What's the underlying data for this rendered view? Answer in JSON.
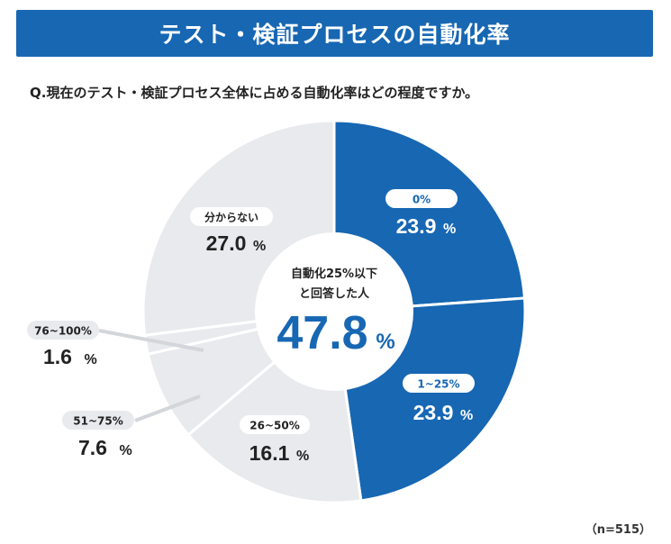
{
  "header": {
    "title": "テスト・検証プロセスの自動化率"
  },
  "question": "Q.現在のテスト・検証プロセス全体に占める自動化率はどの程度ですか。",
  "sample_size": "（n=515）",
  "colors": {
    "primary": "#1767b3",
    "neutral": "#e8eaed",
    "leader": "#d3d6da"
  },
  "chart_data": {
    "type": "pie",
    "title": "テスト・検証プロセスの自動化率",
    "unit": "%",
    "categories": [
      "0%",
      "1~25%",
      "26~50%",
      "51~75%",
      "76~100%",
      "分からない"
    ],
    "values": [
      23.9,
      23.9,
      16.1,
      7.6,
      1.6,
      27.0
    ],
    "labels": [
      "23.9",
      "23.9",
      "16.1",
      "7.6",
      "1.6",
      "27.0"
    ],
    "highlighted": [
      true,
      true,
      false,
      false,
      false,
      false
    ],
    "center": {
      "label_line1": "自動化25%以下",
      "label_line2": "と回答した人",
      "value": "47.8",
      "unit": "%"
    }
  }
}
